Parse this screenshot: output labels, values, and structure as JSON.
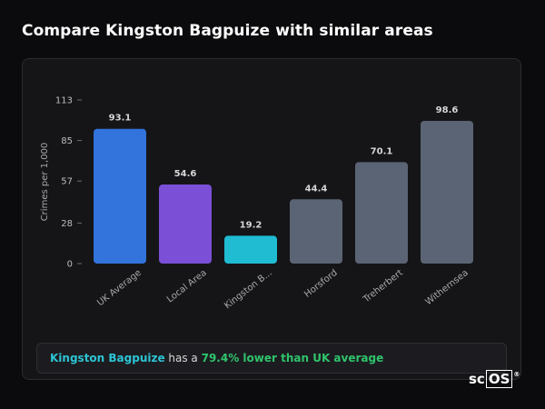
{
  "title": "Compare Kingston Bagpuize with similar areas",
  "chart_data": {
    "type": "bar",
    "ylabel": "Crimes per 1,000",
    "xlabel": "",
    "ylim": [
      0,
      113
    ],
    "yticks": [
      0,
      28,
      57,
      85,
      113
    ],
    "grid": false,
    "categories": [
      "UK Average",
      "Local Area",
      "Kingston B...",
      "Horsford",
      "Treherbert",
      "Withernsea"
    ],
    "values": [
      93.1,
      54.6,
      19.2,
      44.4,
      70.1,
      98.6
    ],
    "value_labels": [
      "93.1",
      "54.6",
      "19.2",
      "44.4",
      "70.1",
      "98.6"
    ],
    "colors": [
      "#3273dc",
      "#7b4fd6",
      "#1fbcd2",
      "#5b6474",
      "#5b6474",
      "#5b6474"
    ]
  },
  "summary": {
    "place": "Kingston Bagpuize",
    "text_mid": " has a ",
    "value": "79.4% lower than UK average"
  },
  "brand": {
    "prefix": "sc",
    "boxed": "OS",
    "mark": "®"
  }
}
